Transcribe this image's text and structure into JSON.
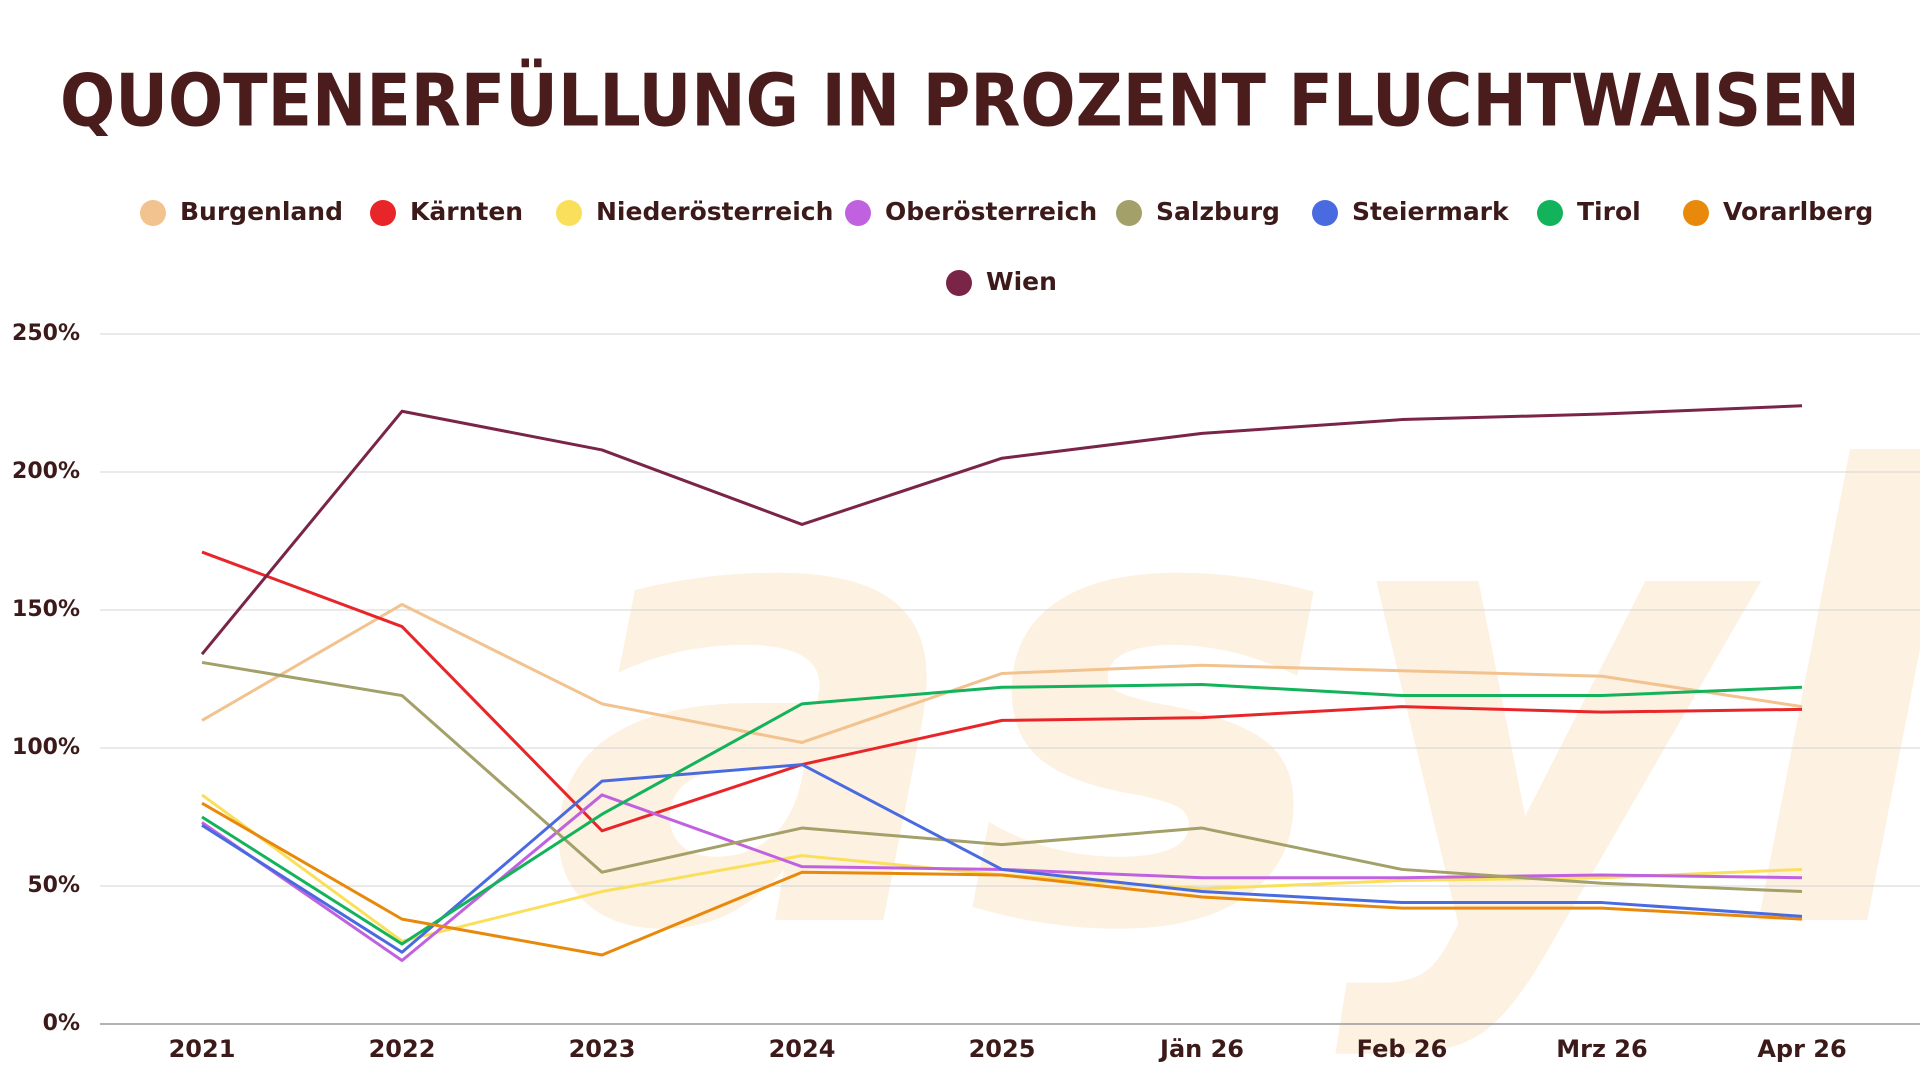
{
  "chart_data": {
    "type": "line",
    "title": "QUOTENERFÜLLUNG IN PROZENT FLUCHTWAISEN",
    "watermark": "asyl",
    "categories": [
      "2021",
      "2022",
      "2023",
      "2024",
      "2025",
      "Jän 26",
      "Feb 26",
      "Mrz 26",
      "Apr 26"
    ],
    "series": [
      {
        "name": "Burgenland",
        "color": "#f2c28f",
        "values": [
          110,
          152,
          116,
          102,
          127,
          130,
          128,
          126,
          115
        ]
      },
      {
        "name": "Kärnten",
        "color": "#e8262a",
        "values": [
          171,
          144,
          70,
          94,
          110,
          111,
          115,
          113,
          114
        ]
      },
      {
        "name": "Niederösterreich",
        "color": "#f9df5a",
        "values": [
          83,
          30,
          48,
          61,
          54,
          49,
          52,
          53,
          56
        ]
      },
      {
        "name": "Oberösterreich",
        "color": "#c062e0",
        "values": [
          73,
          23,
          83,
          57,
          56,
          53,
          53,
          54,
          53
        ]
      },
      {
        "name": "Salzburg",
        "color": "#a3a06a",
        "values": [
          131,
          119,
          55,
          71,
          65,
          71,
          56,
          51,
          48
        ]
      },
      {
        "name": "Steiermark",
        "color": "#4a6be0",
        "values": [
          72,
          26,
          88,
          94,
          56,
          48,
          44,
          44,
          39
        ]
      },
      {
        "name": "Tirol",
        "color": "#12b35a",
        "values": [
          75,
          29,
          76,
          116,
          122,
          123,
          119,
          119,
          122
        ]
      },
      {
        "name": "Vorarlberg",
        "color": "#e8890c",
        "values": [
          80,
          38,
          25,
          55,
          54,
          46,
          42,
          42,
          38
        ]
      },
      {
        "name": "Wien",
        "color": "#7a2448",
        "values": [
          134,
          222,
          208,
          181,
          205,
          214,
          219,
          221,
          224
        ]
      }
    ],
    "ylim": [
      0,
      250
    ],
    "yticks": [
      {
        "value": 0,
        "label": "0%"
      },
      {
        "value": 50,
        "label": "50%"
      },
      {
        "value": 100,
        "label": "100%"
      },
      {
        "value": 150,
        "label": "150%"
      },
      {
        "value": 200,
        "label": "200%"
      },
      {
        "value": 250,
        "label": "250%"
      }
    ],
    "grid": true
  }
}
